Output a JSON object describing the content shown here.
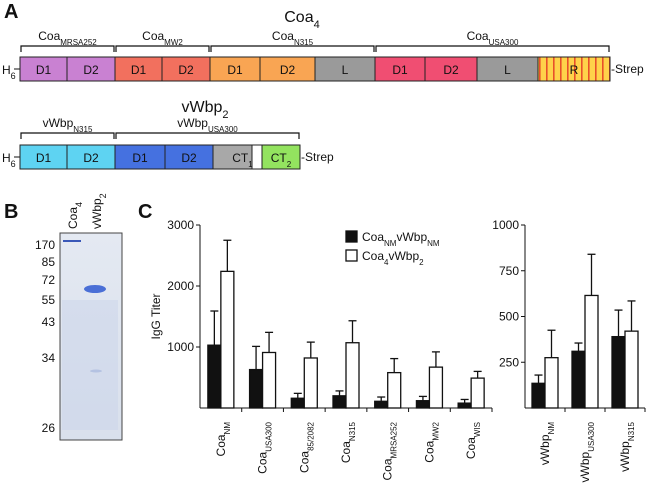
{
  "panels": {
    "a": "A",
    "b": "B",
    "c": "C"
  },
  "coa4": {
    "title": {
      "text": "Coa",
      "sub": "4"
    },
    "tag_left": {
      "text": "H",
      "sub": "6"
    },
    "tag_right": "-Strep",
    "groups": [
      {
        "label": {
          "text": "Coa",
          "sub": "MRSA252"
        },
        "domains": [
          {
            "label": "D1",
            "color": "#c981d2"
          },
          {
            "label": "D2",
            "color": "#c981d2"
          }
        ]
      },
      {
        "label": {
          "text": "Coa",
          "sub": "MW2"
        },
        "domains": [
          {
            "label": "D1",
            "color": "#f2705e"
          },
          {
            "label": "D2",
            "color": "#f2705e"
          }
        ]
      },
      {
        "label": {
          "text": "Coa",
          "sub": "N315"
        },
        "domains": [
          {
            "label": "D1",
            "color": "#f9a553"
          },
          {
            "label": "D2",
            "color": "#f9a553"
          },
          {
            "label": "L",
            "color": "#9a9a9a"
          }
        ]
      },
      {
        "label": {
          "text": "Coa",
          "sub": "USA300"
        },
        "domains": [
          {
            "label": "D1",
            "color": "#f04e72"
          },
          {
            "label": "D2",
            "color": "#f04e72"
          },
          {
            "label": "L",
            "color": "#9a9a9a"
          },
          {
            "label": "R",
            "color": "url(#stripes)"
          }
        ]
      }
    ]
  },
  "vwbp2": {
    "title": {
      "text": "vWbp",
      "sub": "2"
    },
    "tag_left": {
      "text": "H",
      "sub": "6"
    },
    "tag_right": "-Strep",
    "groups": [
      {
        "label": {
          "text": "vWbp",
          "sub": "N315"
        },
        "domains": [
          {
            "label": "D1",
            "color": "#5ed3f2"
          },
          {
            "label": "D2",
            "color": "#5ed3f2"
          }
        ]
      },
      {
        "label": {
          "text": "vWbp",
          "sub": "USA300"
        },
        "domains": [
          {
            "label": "D1",
            "color": "#4571e0"
          },
          {
            "label": "D2",
            "color": "#4571e0"
          },
          {
            "label": {
              "text": "CT",
              "sub": "1"
            },
            "color": "#a8a8a8"
          },
          {
            "label": {
              "text": "CT",
              "sub": "2"
            },
            "color": "#93e35f"
          }
        ]
      }
    ]
  },
  "gel": {
    "lanes": [
      {
        "text": "Coa",
        "sub": "4"
      },
      {
        "text": "vWbp",
        "sub": "2"
      }
    ],
    "markers": [
      170,
      85,
      72,
      55,
      43,
      34,
      26
    ]
  },
  "chart_data": [
    {
      "type": "bar",
      "y_label": "IgG Titer",
      "categories": [
        {
          "text": "Coa",
          "sub": "NM"
        },
        {
          "text": "Coa",
          "sub": "USA300"
        },
        {
          "text": "Coa",
          "sub": "85/2082"
        },
        {
          "text": "Coa",
          "sub": "N315"
        },
        {
          "text": "Coa",
          "sub": "MRSA252"
        },
        {
          "text": "Coa",
          "sub": "MW2"
        },
        {
          "text": "Coa",
          "sub": "WIS"
        }
      ],
      "series": [
        {
          "name": [
            {
              "text": "Coa",
              "sub": "NM"
            },
            {
              "text": "vWbp",
              "sub": "NM"
            }
          ],
          "color": "#111111",
          "values": [
            1030,
            630,
            160,
            200,
            110,
            120,
            80
          ],
          "errors": [
            560,
            380,
            80,
            80,
            70,
            70,
            60
          ]
        },
        {
          "name": [
            {
              "text": "Coa",
              "sub": "4"
            },
            {
              "text": "vWbp",
              "sub": "2"
            }
          ],
          "color": "#ffffff",
          "values": [
            2240,
            910,
            820,
            1070,
            580,
            670,
            490
          ],
          "errors": [
            510,
            330,
            260,
            360,
            230,
            250,
            110
          ]
        }
      ],
      "ylim": [
        0,
        3000
      ],
      "yticks": [
        1000,
        2000,
        3000
      ],
      "legend": "top-right"
    },
    {
      "type": "bar",
      "categories": [
        {
          "text": "vWbp",
          "sub": "NM"
        },
        {
          "text": "vWbp",
          "sub": "USA300"
        },
        {
          "text": "vWbp",
          "sub": "N315"
        }
      ],
      "series": [
        {
          "color": "#111111",
          "values": [
            135,
            310,
            390
          ],
          "errors": [
            45,
            45,
            145
          ]
        },
        {
          "color": "#ffffff",
          "values": [
            275,
            615,
            420
          ],
          "errors": [
            150,
            225,
            165
          ]
        }
      ],
      "ylim": [
        0,
        1000
      ],
      "yticks": [
        250,
        500,
        750,
        1000
      ]
    }
  ]
}
